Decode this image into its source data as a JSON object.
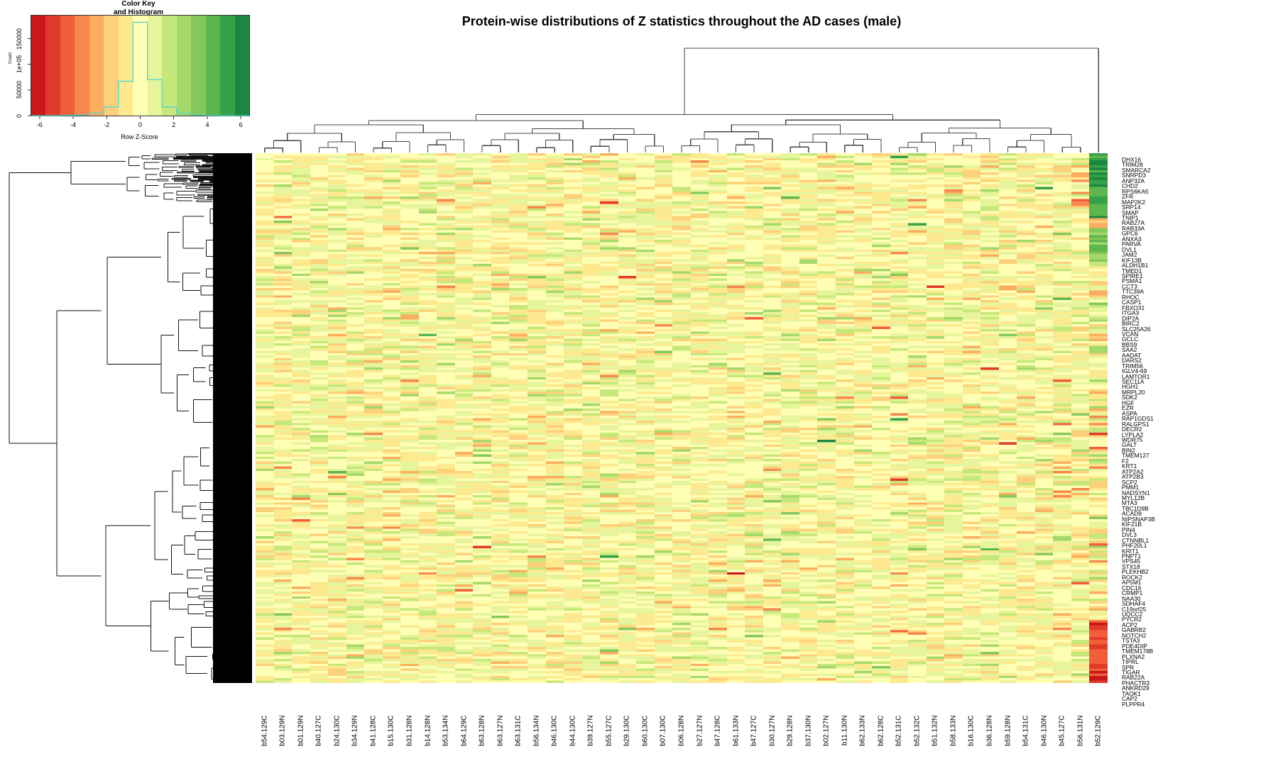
{
  "chart_data": {
    "type": "heatmap",
    "title": "Protein-wise distributions of Z statistics throughout the AD cases (male)",
    "xlabel": "",
    "ylabel": "",
    "color_scale": {
      "name": "RdYlGn",
      "range": [
        -6.5,
        6.5
      ],
      "colors": [
        "#c9171c",
        "#e03b2a",
        "#f25e3a",
        "#f7874e",
        "#fbae5f",
        "#fdd07c",
        "#fde98f",
        "#fefeb4",
        "#e6f49b",
        "#c6e77a",
        "#a5d86a",
        "#84c85c",
        "#5db54e",
        "#35a148",
        "#1c8740"
      ]
    },
    "color_key": {
      "title_line1": "Color Key",
      "title_line2": "and Histogram",
      "xlabel": "Row Z-Score",
      "ylabel": "Count",
      "xticks": [
        "-6",
        "-4",
        "-2",
        "0",
        "2",
        "4",
        "6"
      ],
      "yticks": [
        "0",
        "50000",
        "1e+05",
        "150000"
      ],
      "histogram": {
        "bin_edges": [
          -6.5,
          -5.63,
          -4.77,
          -3.9,
          -3.03,
          -2.17,
          -1.3,
          -0.43,
          0.43,
          1.3,
          2.17,
          3.03,
          3.9,
          4.77,
          5.63,
          6.5
        ],
        "counts": [
          0,
          200,
          600,
          1500,
          5000,
          17000,
          67000,
          182000,
          70000,
          17000,
          4000,
          1200,
          400,
          100,
          0
        ],
        "line_color": "#4fd8c8"
      }
    },
    "columns": [
      "b54.129C",
      "b03.129N",
      "b01.129N",
      "b40.127C",
      "b24.130C",
      "b34.129N",
      "b41.128C",
      "b15.130C",
      "b31.128N",
      "b14.128N",
      "b53.134N",
      "b64.129C",
      "b63.128N",
      "b63.127N",
      "b63.131C",
      "b56.134N",
      "b46.130C",
      "b44.130C",
      "b39.127N",
      "b55.127C",
      "b29.130C",
      "b60.130C",
      "b07.130C",
      "b06.128N",
      "b27.127N",
      "b47.128C",
      "b61.133N",
      "b47.127C",
      "b30.127N",
      "b29.128N",
      "b37.130N",
      "b02.127N",
      "b11.130N",
      "b62.133N",
      "b62.128C",
      "b52.131C",
      "b52.132C",
      "b51.132N",
      "b58.133N",
      "b16.130C",
      "b36.128N",
      "b59.128N",
      "b54.131C",
      "b46.130N",
      "b45.127C",
      "b56.131N",
      "b52.129C"
    ],
    "row_labels": [
      "DHX16",
      "TRIM28",
      "SMARCA2",
      "SNRPD3",
      "ANP32A",
      "CHD2",
      "RPS6KA5",
      "ZFR",
      "MAP2K2",
      "SRP14",
      "SMAP",
      "TNIP1",
      "RAB27A",
      "RAB33A",
      "GPC6",
      "ANXA3",
      "PARVA",
      "DVL1",
      "JAM2",
      "KIF13B",
      "ALDH1B1",
      "TMED1",
      "SPIRE1",
      "PSMA1",
      "CCT3",
      "TTC39A",
      "RHOC",
      "CASP1",
      "FBXO31",
      "ITGA3",
      "DIP2A",
      "BIRC2",
      "SLC25A26",
      "VCAN",
      "GCLC",
      "BBS9",
      "SAA2",
      "AADAT",
      "DARS2",
      "TRIM56",
      "IGLV4-69",
      "LAMTOR1",
      "SEC11A",
      "HGH1",
      "MRPL20",
      "SDK2",
      "HGF",
      "EZR",
      "ASPA",
      "RAP1GDS1",
      "RALGPS1",
      "DECR2",
      "LYPLA2",
      "WDR75",
      "GALT",
      "BIN2",
      "TMEM127",
      "F2",
      "KRT1",
      "ATP2A2",
      "ATP2B3",
      "SCP2",
      "PMM1",
      "NADSYN1",
      "MYL12B",
      "MTA3",
      "TBC1D9B",
      "ACAD9",
      "NIPSNAP3B",
      "KIF21B",
      "PIN4",
      "DVL3",
      "CTNNBL1",
      "PHF20L1",
      "KRIT1",
      "PNPT1",
      "VPS45",
      "STX18",
      "PLEKHB2",
      "ROCK2",
      "AP5M1",
      "CDC16",
      "CRMP1",
      "NAA30",
      "SDHAF4",
      "C19orf25",
      "UQCC2",
      "PYCR2",
      "ACP2",
      "GABRB2",
      "NOTCH2",
      "TSTA3",
      "PDE4DIP",
      "TMEM178B",
      "PLXNA2",
      "TIPRL",
      "SPR",
      "TIGAR",
      "RAB22A",
      "PHACTR3",
      "ANKRD29",
      "TAOK1",
      "CAP2",
      "PLPPR4"
    ],
    "column_notes": {
      "b52.129C": "strongly divergent column: dark green block at top rows (DHX16–TNIP1), mixed green/orange in middle, solid red block at bottom (PDE4DIP–PLPPR4)"
    },
    "dendrograms": {
      "rows": true,
      "columns": true,
      "column_top_split": "b52.129C separated from all others at highest node"
    }
  },
  "page": {
    "title": "Protein-wise distributions of Z statistics throughout the AD cases (male)"
  }
}
